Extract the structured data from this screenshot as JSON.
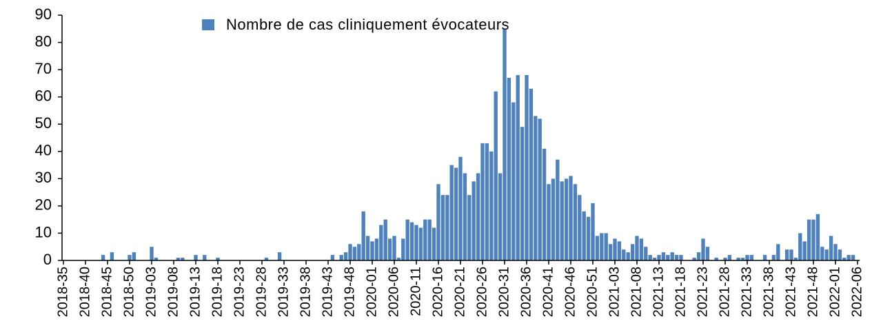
{
  "chart_data": {
    "type": "bar",
    "categories": [
      "2018-35",
      null,
      null,
      null,
      null,
      "2018-40",
      null,
      null,
      null,
      null,
      "2018-45",
      null,
      null,
      null,
      null,
      "2018-50",
      null,
      null,
      null,
      null,
      "2019-03",
      null,
      null,
      null,
      null,
      "2019-08",
      null,
      null,
      null,
      null,
      "2019-13",
      null,
      null,
      null,
      null,
      "2019-18",
      null,
      null,
      null,
      null,
      "2019-23",
      null,
      null,
      null,
      null,
      "2019-28",
      null,
      null,
      null,
      null,
      "2019-33",
      null,
      null,
      null,
      null,
      "2019-38",
      null,
      null,
      null,
      null,
      "2019-43",
      null,
      null,
      null,
      null,
      "2019-48",
      null,
      null,
      null,
      null,
      "2020-01",
      null,
      null,
      null,
      null,
      "2020-06",
      null,
      null,
      null,
      null,
      "2020-11",
      null,
      null,
      null,
      null,
      "2020-16",
      null,
      null,
      null,
      null,
      "2020-21",
      null,
      null,
      null,
      null,
      "2020-26",
      null,
      null,
      null,
      null,
      "2020-31",
      null,
      null,
      null,
      null,
      "2020-36",
      null,
      null,
      null,
      null,
      "2020-41",
      null,
      null,
      null,
      null,
      "2020-46",
      null,
      null,
      null,
      null,
      "2020-51",
      null,
      null,
      null,
      null,
      "2021-03",
      null,
      null,
      null,
      null,
      "2021-08",
      null,
      null,
      null,
      null,
      "2021-13",
      null,
      null,
      null,
      null,
      "2021-18",
      null,
      null,
      null,
      null,
      "2021-23",
      null,
      null,
      null,
      null,
      "2021-28",
      null,
      null,
      null,
      null,
      "2021-33",
      null,
      null,
      null,
      null,
      "2021-38",
      null,
      null,
      null,
      null,
      "2021-43",
      null,
      null,
      null,
      null,
      "2021-48",
      null,
      null,
      null,
      null,
      "2022-01",
      null,
      null,
      null,
      null,
      "2022-06"
    ],
    "series": [
      {
        "name": "Nombre de cas cliniquement évocateurs",
        "color": "#4f81bd",
        "values": [
          0,
          0,
          0,
          0,
          0,
          0,
          0,
          0,
          0,
          2,
          0,
          3,
          0,
          0,
          0,
          2,
          3,
          0,
          0,
          0,
          5,
          1,
          0,
          0,
          0,
          0,
          1,
          1,
          0,
          0,
          2,
          0,
          2,
          0,
          0,
          1,
          0,
          0,
          0,
          0,
          0,
          0,
          0,
          0,
          0,
          0,
          1,
          0,
          0,
          3,
          0,
          0,
          0,
          0,
          0,
          0,
          0,
          0,
          0,
          0,
          0,
          2,
          0,
          2,
          3,
          6,
          5,
          6,
          18,
          9,
          7,
          8,
          13,
          15,
          8,
          9,
          1,
          8,
          15,
          14,
          13,
          12,
          15,
          15,
          12,
          28,
          24,
          24,
          35,
          34,
          38,
          32,
          24,
          29,
          32,
          43,
          43,
          40,
          62,
          32,
          85,
          67,
          58,
          68,
          49,
          68,
          63,
          53,
          52,
          41,
          28,
          30,
          37,
          29,
          30,
          31,
          28,
          24,
          18,
          16,
          21,
          9,
          10,
          10,
          6,
          8,
          7,
          4,
          3,
          6,
          9,
          8,
          5,
          2,
          1,
          2,
          3,
          2,
          3,
          2,
          2,
          0,
          0,
          1,
          3,
          8,
          5,
          0,
          1,
          0,
          1,
          2,
          0,
          1,
          1,
          2,
          2,
          0,
          0,
          2,
          0,
          2,
          6,
          0,
          4,
          4,
          1,
          10,
          7,
          15,
          15,
          17,
          5,
          4,
          9,
          6,
          4,
          1,
          2,
          2,
          0
        ]
      }
    ],
    "ylim": [
      0,
      90
    ],
    "yticks": [
      0,
      10,
      20,
      30,
      40,
      50,
      60,
      70,
      80,
      90
    ],
    "grid": false,
    "legend": "top"
  }
}
